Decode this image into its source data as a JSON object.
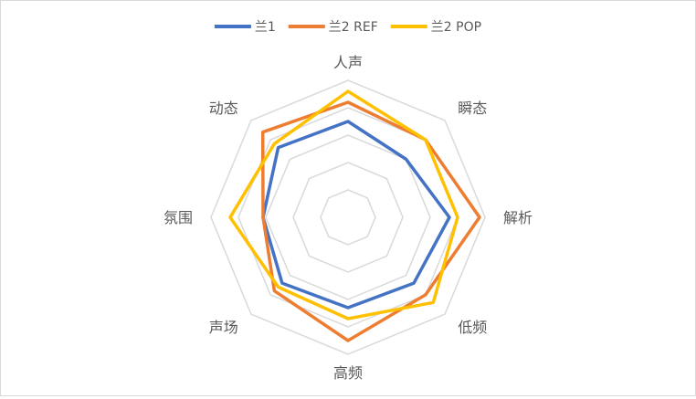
{
  "chart_data": {
    "type": "radar",
    "title": "",
    "categories": [
      "人声",
      "瞬态",
      "解析",
      "低频",
      "高频",
      "声场",
      "氛围",
      "动态"
    ],
    "rmax": 5,
    "ring_levels": [
      1,
      2,
      3,
      4,
      5
    ],
    "grid": true,
    "legend_position": "top",
    "series": [
      {
        "name": "兰1",
        "color": "#4472C4",
        "values": [
          3.5,
          3.0,
          3.7,
          3.4,
          3.3,
          3.4,
          3.1,
          3.6
        ]
      },
      {
        "name": "兰2 REF",
        "color": "#ED7D31",
        "values": [
          4.2,
          4.0,
          4.8,
          4.0,
          4.5,
          3.8,
          3.1,
          4.4
        ]
      },
      {
        "name": "兰2 POP",
        "color": "#FFC000",
        "values": [
          4.6,
          4.0,
          4.0,
          4.4,
          3.7,
          3.6,
          4.3,
          3.8
        ]
      }
    ]
  }
}
